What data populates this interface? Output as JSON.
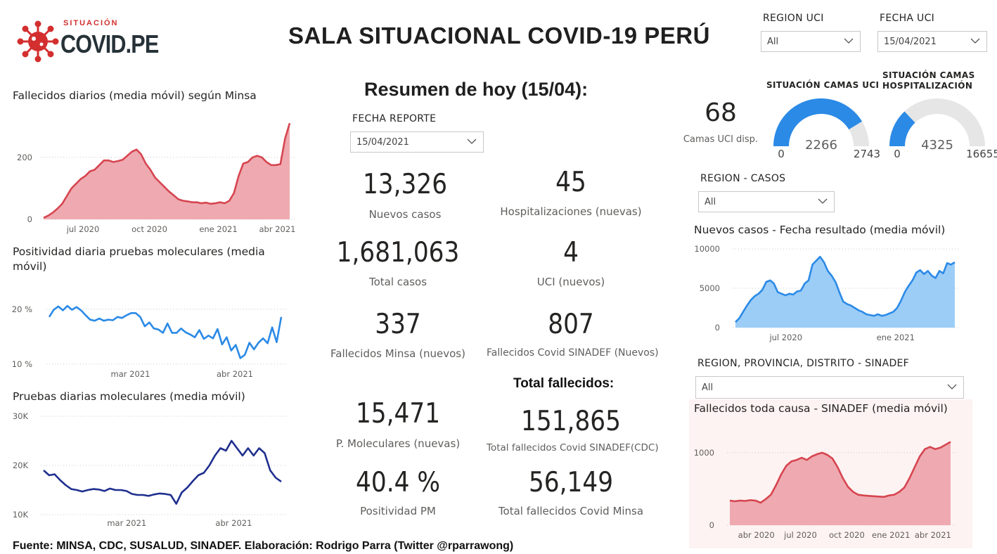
{
  "logo": {
    "small": "SITUACIÓN",
    "big": "COVID.PE"
  },
  "title": "SALA SITUACIONAL COVID-19 PERÚ",
  "summary_title": "Resumen de hoy (15/04):",
  "filters": {
    "region_uci": {
      "label": "REGION UCI",
      "value": "All"
    },
    "fecha_uci": {
      "label": "FECHA UCI",
      "value": "15/04/2021"
    },
    "fecha_reporte": {
      "label": "FECHA REPORTE",
      "value": "15/04/2021"
    },
    "region_casos": {
      "label": "REGION - CASOS",
      "value": "All"
    },
    "region_sinadef": {
      "label": "REGION, PROVINCIA, DISTRITO - SINADEF",
      "value": "All"
    }
  },
  "kpis": {
    "nuevos_casos": {
      "value": "13,326",
      "label": "Nuevos casos"
    },
    "hospitalizaciones": {
      "value": "45",
      "label": "Hospitalizaciones (nuevas)"
    },
    "total_casos": {
      "value": "1,681,063",
      "label": "Total casos"
    },
    "uci": {
      "value": "4",
      "label": "UCI (nuevos)"
    },
    "fallecidos_minsa": {
      "value": "337",
      "label": "Fallecidos Minsa (nuevos)"
    },
    "fallecidos_sinadef": {
      "value": "807",
      "label": "Fallecidos Covid SINADEF (Nuevos)"
    },
    "pruebas": {
      "value": "15,471",
      "label": "P. Moleculares (nuevas)"
    },
    "total_sinadef": {
      "value": "151,865",
      "label": "Total fallecidos Covid SINADEF(CDC)"
    },
    "positividad": {
      "value": "40.4 %",
      "label": "Positividad PM"
    },
    "total_minsa": {
      "value": "56,149",
      "label": "Total fallecidos Covid Minsa"
    }
  },
  "total_fallecidos_heading": "Total fallecidos:",
  "camas": {
    "value": "68",
    "label": "Camas UCI disp."
  },
  "footer": "Fuente: MINSA, CDC, SUSALUD, SINADEF. Elaboración: Rodrigo Parra (Twitter @rparrawong)",
  "colors": {
    "red": "#d64550",
    "red_fill": "#eeaab0",
    "blue": "#2b8ae6",
    "blue_fill": "#9ccdf7",
    "navy": "#1f2f8f",
    "gauge_gray": "#e6e6e6",
    "sinadef_bg": "#fdf3f2"
  },
  "chart_data": [
    {
      "id": "fallecidos-minsa",
      "type": "area",
      "title": "Fallecidos diarios (media móvil) según Minsa",
      "x_ticks": [
        "jul 2020",
        "oct 2020",
        "ene 2021",
        "abr 2021"
      ],
      "y_ticks": [
        "0",
        "200"
      ],
      "ylim": [
        0,
        340
      ],
      "grid": true,
      "values": [
        5,
        12,
        22,
        35,
        50,
        75,
        100,
        115,
        130,
        140,
        155,
        160,
        175,
        190,
        190,
        185,
        188,
        192,
        205,
        218,
        225,
        210,
        180,
        160,
        135,
        120,
        105,
        90,
        78,
        65,
        60,
        58,
        55,
        55,
        52,
        54,
        50,
        52,
        55,
        52,
        60,
        85,
        140,
        180,
        185,
        200,
        205,
        200,
        185,
        175,
        175,
        178,
        260,
        310
      ]
    },
    {
      "id": "positividad",
      "type": "line",
      "title": "Positividad diaria pruebas moleculares (media móvil)",
      "x_ticks": [
        "mar 2021",
        "abr 2021"
      ],
      "y_ticks": [
        "10 %",
        "20 %"
      ],
      "ylim": [
        10,
        21
      ],
      "grid": true,
      "values": [
        18.6,
        19.9,
        20.5,
        19.8,
        20.6,
        19.9,
        20.4,
        19.8,
        18.9,
        18.1,
        17.9,
        18.3,
        17.9,
        18.1,
        18.0,
        18.6,
        18.4,
        18.9,
        19.3,
        19.3,
        18.6,
        16.9,
        17.6,
        16.5,
        16.3,
        15.7,
        17.4,
        15.7,
        15.7,
        16.5,
        15.8,
        15.4,
        14.9,
        16.2,
        14.6,
        15.2,
        14.7,
        16.4,
        13.6,
        14.9,
        12.5,
        13.5,
        11.1,
        11.7,
        13.9,
        12.7,
        13.9,
        14.7,
        13.8,
        16.7,
        14.0,
        18.6
      ]
    },
    {
      "id": "pruebas",
      "type": "line",
      "title": "Pruebas diarias moleculares (media móvil)",
      "x_ticks": [
        "mar 2021",
        "abr 2021"
      ],
      "y_ticks": [
        "10K",
        "20K",
        "30K"
      ],
      "ylim": [
        10000,
        30000
      ],
      "grid": true,
      "values": [
        19000,
        18000,
        18200,
        17000,
        16000,
        15200,
        15000,
        14700,
        15000,
        15200,
        15100,
        14800,
        15300,
        15000,
        15000,
        14800,
        14200,
        14000,
        14000,
        13800,
        14100,
        14300,
        14200,
        14000,
        12200,
        14500,
        15500,
        16800,
        18000,
        18500,
        20000,
        22000,
        23500,
        23000,
        25000,
        23500,
        22000,
        23500,
        22000,
        23500,
        22500,
        19000,
        17500,
        16700
      ]
    },
    {
      "id": "nuevos-casos",
      "type": "area",
      "title": "Nuevos casos - Fecha resultado (media móvil)",
      "x_ticks": [
        "jul 2020",
        "ene 2021"
      ],
      "y_ticks": [
        "0",
        "5000",
        "10000"
      ],
      "ylim": [
        0,
        10000
      ],
      "grid": true,
      "values": [
        700,
        1200,
        2000,
        2800,
        3500,
        4000,
        4300,
        4800,
        5800,
        6000,
        5600,
        4500,
        4300,
        4100,
        4300,
        4200,
        4600,
        4700,
        5600,
        6000,
        8000,
        8500,
        9000,
        8300,
        7200,
        6600,
        5800,
        4500,
        3300,
        3000,
        2800,
        2500,
        2200,
        2000,
        1700,
        1600,
        1500,
        1700,
        1500,
        1600,
        1800,
        2000,
        2500,
        3400,
        4500,
        5300,
        6000,
        7000,
        7300,
        6800,
        7200,
        6600,
        6300,
        7200,
        6900,
        8200,
        8000,
        8300
      ]
    },
    {
      "id": "fallecidos-sinadef",
      "type": "area",
      "title": "Fallecidos toda causa - SINADEF (media móvil)",
      "x_ticks": [
        "abr 2020",
        "jul 2020",
        "oct 2020",
        "ene 2021",
        "abr 2021"
      ],
      "y_ticks": [
        "0",
        "1000"
      ],
      "ylim": [
        0,
        1300
      ],
      "grid": true,
      "values": [
        340,
        330,
        340,
        335,
        345,
        340,
        310,
        360,
        420,
        550,
        700,
        820,
        880,
        900,
        930,
        900,
        950,
        980,
        1000,
        970,
        920,
        800,
        650,
        530,
        460,
        420,
        410,
        405,
        400,
        395,
        390,
        410,
        420,
        460,
        520,
        650,
        800,
        950,
        1050,
        1080,
        1050,
        1070,
        1110,
        1150
      ]
    }
  ],
  "gauges": [
    {
      "id": "uci",
      "title": "SITUACIÓN CAMAS UCI",
      "value": 2266,
      "min": 0,
      "max": 2743,
      "value_label": "2266",
      "min_label": "0",
      "max_label": "2743"
    },
    {
      "id": "hosp",
      "title": "SITUACIÓN CAMAS HOSPITALIZACIÓN",
      "value": 4325,
      "min": 0,
      "max": 16655,
      "value_label": "4325",
      "min_label": "0",
      "max_label": "16655"
    }
  ]
}
